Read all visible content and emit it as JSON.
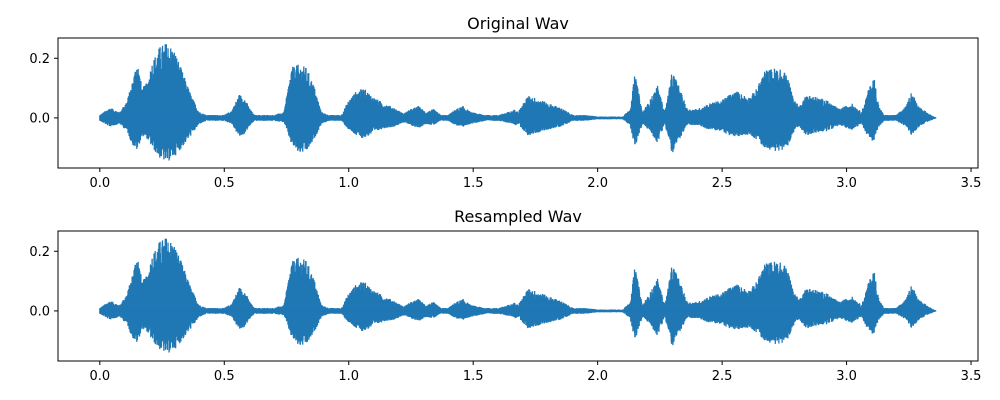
{
  "chart_data": [
    {
      "type": "line",
      "title": "Original Wav",
      "xlabel": "",
      "ylabel": "",
      "xlim": [
        -0.168,
        3.528
      ],
      "ylim": [
        -0.168,
        0.268
      ],
      "grid": false,
      "xticks": [
        0.0,
        0.5,
        1.0,
        1.5,
        2.0,
        2.5,
        3.0,
        3.5
      ],
      "xtick_labels": [
        "0.0",
        "0.5",
        "1.0",
        "1.5",
        "2.0",
        "2.5",
        "3.0",
        "3.5"
      ],
      "yticks": [
        0.2,
        0.0
      ],
      "ytick_labels": [
        "0.2",
        "0.0"
      ],
      "series": [
        {
          "name": "waveform",
          "color": "#1f77b4",
          "envelope": {
            "time_s": [
              0.0,
              0.04,
              0.08,
              0.11,
              0.13,
              0.15,
              0.17,
              0.19,
              0.21,
              0.24,
              0.27,
              0.3,
              0.33,
              0.37,
              0.4,
              0.43,
              0.47,
              0.5,
              0.53,
              0.56,
              0.58,
              0.6,
              0.62,
              0.65,
              0.7,
              0.74,
              0.77,
              0.8,
              0.83,
              0.86,
              0.89,
              0.92,
              0.97,
              1.0,
              1.03,
              1.06,
              1.1,
              1.14,
              1.18,
              1.22,
              1.25,
              1.28,
              1.31,
              1.34,
              1.37,
              1.4,
              1.43,
              1.46,
              1.49,
              1.52,
              1.55,
              1.6,
              1.66,
              1.67,
              1.68,
              1.72,
              1.76,
              1.8,
              1.85,
              1.9,
              1.95,
              2.0,
              2.05,
              2.1,
              2.13,
              2.15,
              2.18,
              2.21,
              2.24,
              2.27,
              2.3,
              2.33,
              2.36,
              2.4,
              2.45,
              2.5,
              2.53,
              2.56,
              2.58,
              2.61,
              2.64,
              2.67,
              2.72,
              2.76,
              2.79,
              2.81,
              2.84,
              2.88,
              2.92,
              2.97,
              3.02,
              3.06,
              3.09,
              3.11,
              3.13,
              3.15,
              3.2,
              3.24,
              3.26,
              3.29,
              3.32,
              3.35,
              3.36
            ],
            "upper": [
              0.01,
              0.035,
              0.02,
              0.06,
              0.12,
              0.2,
              0.1,
              0.12,
              0.19,
              0.24,
              0.255,
              0.23,
              0.16,
              0.07,
              0.02,
              0.01,
              0.01,
              0.01,
              0.025,
              0.08,
              0.07,
              0.035,
              0.01,
              0.01,
              0.01,
              0.02,
              0.17,
              0.18,
              0.17,
              0.11,
              0.02,
              0.01,
              0.01,
              0.06,
              0.09,
              0.1,
              0.07,
              0.05,
              0.035,
              0.015,
              0.03,
              0.04,
              0.02,
              0.03,
              0.01,
              0.01,
              0.03,
              0.04,
              0.02,
              0.015,
              0.01,
              0.01,
              0.025,
              0.03,
              0.02,
              0.075,
              0.065,
              0.05,
              0.035,
              0.01,
              0.01,
              0.005,
              0.005,
              0.005,
              0.03,
              0.15,
              0.02,
              0.06,
              0.11,
              0.02,
              0.16,
              0.1,
              0.03,
              0.03,
              0.05,
              0.06,
              0.08,
              0.09,
              0.08,
              0.07,
              0.1,
              0.16,
              0.17,
              0.15,
              0.06,
              0.04,
              0.08,
              0.07,
              0.06,
              0.03,
              0.05,
              0.02,
              0.1,
              0.14,
              0.04,
              0.01,
              0.01,
              0.04,
              0.09,
              0.04,
              0.02,
              0.005,
              0.0
            ],
            "lower": [
              -0.01,
              -0.03,
              -0.02,
              -0.045,
              -0.09,
              -0.11,
              -0.06,
              -0.07,
              -0.1,
              -0.135,
              -0.15,
              -0.13,
              -0.1,
              -0.055,
              -0.02,
              -0.01,
              -0.01,
              -0.01,
              -0.02,
              -0.065,
              -0.055,
              -0.03,
              -0.01,
              -0.01,
              -0.01,
              -0.015,
              -0.09,
              -0.12,
              -0.115,
              -0.075,
              -0.02,
              -0.01,
              -0.01,
              -0.04,
              -0.06,
              -0.07,
              -0.05,
              -0.035,
              -0.03,
              -0.015,
              -0.025,
              -0.035,
              -0.02,
              -0.025,
              -0.01,
              -0.01,
              -0.025,
              -0.03,
              -0.02,
              -0.015,
              -0.01,
              -0.01,
              -0.02,
              -0.025,
              -0.02,
              -0.06,
              -0.05,
              -0.04,
              -0.03,
              -0.01,
              -0.01,
              -0.005,
              -0.005,
              -0.005,
              -0.025,
              -0.1,
              -0.02,
              -0.045,
              -0.085,
              -0.02,
              -0.125,
              -0.07,
              -0.025,
              -0.025,
              -0.04,
              -0.045,
              -0.06,
              -0.065,
              -0.06,
              -0.055,
              -0.075,
              -0.1,
              -0.115,
              -0.1,
              -0.045,
              -0.03,
              -0.06,
              -0.05,
              -0.045,
              -0.025,
              -0.04,
              -0.02,
              -0.07,
              -0.08,
              -0.03,
              -0.01,
              -0.01,
              -0.03,
              -0.06,
              -0.03,
              -0.015,
              -0.005,
              0.0
            ]
          }
        }
      ]
    },
    {
      "type": "line",
      "title": "Resampled Wav",
      "xlabel": "",
      "ylabel": "",
      "xlim": [
        -0.168,
        3.528
      ],
      "ylim": [
        -0.168,
        0.268
      ],
      "grid": false,
      "xticks": [
        0.0,
        0.5,
        1.0,
        1.5,
        2.0,
        2.5,
        3.0,
        3.5
      ],
      "xtick_labels": [
        "0.0",
        "0.5",
        "1.0",
        "1.5",
        "2.0",
        "2.5",
        "3.0",
        "3.5"
      ],
      "yticks": [
        0.2,
        0.0
      ],
      "ytick_labels": [
        "0.2",
        "0.0"
      ],
      "series": [
        {
          "name": "waveform",
          "color": "#1f77b4",
          "envelope": {
            "time_s": [
              0.0,
              0.04,
              0.08,
              0.11,
              0.13,
              0.15,
              0.17,
              0.19,
              0.21,
              0.24,
              0.27,
              0.3,
              0.33,
              0.37,
              0.4,
              0.43,
              0.47,
              0.5,
              0.53,
              0.56,
              0.58,
              0.6,
              0.62,
              0.65,
              0.7,
              0.74,
              0.77,
              0.8,
              0.83,
              0.86,
              0.89,
              0.92,
              0.97,
              1.0,
              1.03,
              1.06,
              1.1,
              1.14,
              1.18,
              1.22,
              1.25,
              1.28,
              1.31,
              1.34,
              1.37,
              1.4,
              1.43,
              1.46,
              1.49,
              1.52,
              1.55,
              1.6,
              1.66,
              1.67,
              1.68,
              1.72,
              1.76,
              1.8,
              1.85,
              1.9,
              1.95,
              2.0,
              2.05,
              2.1,
              2.13,
              2.15,
              2.18,
              2.21,
              2.24,
              2.27,
              2.3,
              2.33,
              2.36,
              2.4,
              2.45,
              2.5,
              2.53,
              2.56,
              2.58,
              2.61,
              2.64,
              2.67,
              2.72,
              2.76,
              2.79,
              2.81,
              2.84,
              2.88,
              2.92,
              2.97,
              3.02,
              3.06,
              3.09,
              3.11,
              3.13,
              3.15,
              3.2,
              3.24,
              3.26,
              3.29,
              3.32,
              3.35,
              3.36
            ],
            "upper": [
              0.01,
              0.035,
              0.02,
              0.06,
              0.12,
              0.2,
              0.1,
              0.12,
              0.19,
              0.235,
              0.25,
              0.225,
              0.16,
              0.07,
              0.02,
              0.01,
              0.01,
              0.01,
              0.025,
              0.08,
              0.07,
              0.035,
              0.01,
              0.01,
              0.01,
              0.02,
              0.165,
              0.18,
              0.17,
              0.11,
              0.02,
              0.01,
              0.01,
              0.06,
              0.09,
              0.1,
              0.07,
              0.05,
              0.035,
              0.015,
              0.03,
              0.04,
              0.02,
              0.03,
              0.01,
              0.01,
              0.03,
              0.04,
              0.02,
              0.015,
              0.01,
              0.01,
              0.025,
              0.03,
              0.02,
              0.075,
              0.065,
              0.05,
              0.035,
              0.01,
              0.01,
              0.005,
              0.005,
              0.005,
              0.03,
              0.15,
              0.02,
              0.06,
              0.11,
              0.02,
              0.16,
              0.1,
              0.03,
              0.03,
              0.05,
              0.06,
              0.08,
              0.09,
              0.08,
              0.07,
              0.1,
              0.16,
              0.17,
              0.15,
              0.06,
              0.04,
              0.08,
              0.07,
              0.06,
              0.03,
              0.05,
              0.02,
              0.1,
              0.14,
              0.04,
              0.01,
              0.01,
              0.04,
              0.09,
              0.04,
              0.02,
              0.005,
              0.0
            ],
            "lower": [
              -0.01,
              -0.03,
              -0.02,
              -0.045,
              -0.09,
              -0.11,
              -0.06,
              -0.07,
              -0.1,
              -0.13,
              -0.145,
              -0.13,
              -0.1,
              -0.055,
              -0.02,
              -0.01,
              -0.01,
              -0.01,
              -0.02,
              -0.065,
              -0.055,
              -0.03,
              -0.01,
              -0.01,
              -0.01,
              -0.015,
              -0.09,
              -0.12,
              -0.115,
              -0.075,
              -0.02,
              -0.01,
              -0.01,
              -0.04,
              -0.06,
              -0.07,
              -0.05,
              -0.035,
              -0.03,
              -0.015,
              -0.025,
              -0.035,
              -0.02,
              -0.025,
              -0.01,
              -0.01,
              -0.025,
              -0.03,
              -0.02,
              -0.015,
              -0.01,
              -0.01,
              -0.02,
              -0.025,
              -0.02,
              -0.06,
              -0.05,
              -0.04,
              -0.03,
              -0.01,
              -0.01,
              -0.005,
              -0.005,
              -0.005,
              -0.025,
              -0.1,
              -0.02,
              -0.045,
              -0.085,
              -0.02,
              -0.125,
              -0.07,
              -0.025,
              -0.025,
              -0.04,
              -0.045,
              -0.06,
              -0.065,
              -0.06,
              -0.055,
              -0.075,
              -0.1,
              -0.115,
              -0.1,
              -0.045,
              -0.03,
              -0.06,
              -0.05,
              -0.045,
              -0.025,
              -0.04,
              -0.02,
              -0.07,
              -0.08,
              -0.03,
              -0.01,
              -0.01,
              -0.03,
              -0.06,
              -0.03,
              -0.015,
              -0.005,
              0.0
            ]
          }
        }
      ]
    }
  ]
}
